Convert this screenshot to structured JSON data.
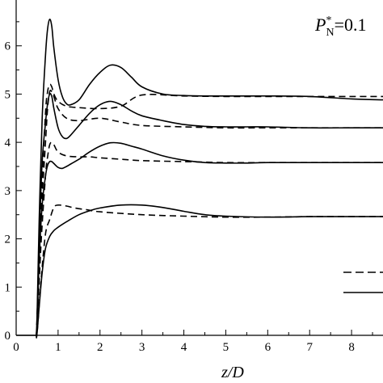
{
  "chart_data": {
    "type": "line",
    "xlabel": "z/D",
    "ylabel": "",
    "xlim": [
      0,
      8.75
    ],
    "ylim": [
      0,
      6.95
    ],
    "x_ticks": [
      "0",
      "1",
      "2",
      "3",
      "4",
      "5",
      "6",
      "7",
      "8"
    ],
    "y_ticks": [
      "0",
      "1",
      "2",
      "3",
      "4",
      "5",
      "6"
    ],
    "annotation": {
      "main": "P",
      "sup": "*",
      "sub": "N",
      "value": "=0.1"
    },
    "legend": {
      "placement": "bottom-right",
      "entries": [
        {
          "style": "dashed"
        },
        {
          "style": "solid"
        }
      ]
    },
    "grid": false,
    "series": [
      {
        "style": "solid",
        "x": [
          0.48,
          0.5,
          0.55,
          0.62,
          0.7,
          0.8,
          0.9,
          1.0,
          1.1,
          1.25,
          1.5,
          1.75,
          2.0,
          2.5,
          3.0,
          3.5,
          4.0,
          4.5,
          5.0,
          6.0,
          7.0,
          8.0,
          8.75
        ],
        "y": [
          0.0,
          0.05,
          0.6,
          1.3,
          1.8,
          2.05,
          2.17,
          2.24,
          2.3,
          2.38,
          2.5,
          2.58,
          2.64,
          2.7,
          2.7,
          2.65,
          2.57,
          2.5,
          2.47,
          2.45,
          2.46,
          2.46,
          2.46
        ]
      },
      {
        "style": "dashed",
        "x": [
          0.48,
          0.5,
          0.6,
          0.7,
          0.8,
          0.9,
          1.0,
          1.2,
          1.4,
          1.7,
          2.0,
          3.0,
          4.0,
          5.0,
          6.0,
          7.0,
          8.0,
          8.75
        ],
        "y": [
          0.0,
          0.05,
          1.2,
          2.1,
          2.4,
          2.65,
          2.7,
          2.68,
          2.64,
          2.6,
          2.56,
          2.5,
          2.47,
          2.45,
          2.45,
          2.46,
          2.46,
          2.46
        ]
      },
      {
        "style": "solid",
        "x": [
          0.48,
          0.5,
          0.55,
          0.62,
          0.7,
          0.75,
          0.8,
          0.85,
          0.9,
          1.0,
          1.1,
          1.2,
          1.3,
          1.5,
          1.75,
          2.0,
          2.25,
          2.5,
          2.75,
          3.0,
          3.5,
          4.0,
          4.5,
          5.0,
          5.5,
          6.0,
          7.0,
          8.0,
          8.75
        ],
        "y": [
          0.0,
          0.2,
          1.6,
          2.7,
          3.3,
          3.52,
          3.6,
          3.6,
          3.56,
          3.48,
          3.46,
          3.5,
          3.55,
          3.65,
          3.8,
          3.92,
          3.99,
          3.98,
          3.92,
          3.86,
          3.72,
          3.63,
          3.58,
          3.57,
          3.57,
          3.58,
          3.58,
          3.58,
          3.58
        ]
      },
      {
        "style": "dashed",
        "x": [
          0.48,
          0.5,
          0.6,
          0.7,
          0.75,
          0.8,
          0.85,
          0.9,
          1.0,
          1.2,
          1.5,
          1.75,
          2.0,
          2.5,
          3.0,
          4.0,
          5.0,
          6.0,
          7.0,
          8.0,
          8.75
        ],
        "y": [
          0.0,
          0.2,
          2.0,
          3.3,
          3.7,
          3.95,
          4.0,
          3.95,
          3.8,
          3.72,
          3.7,
          3.7,
          3.68,
          3.65,
          3.62,
          3.6,
          3.58,
          3.58,
          3.58,
          3.58,
          3.58
        ]
      },
      {
        "style": "solid",
        "x": [
          0.48,
          0.5,
          0.55,
          0.62,
          0.7,
          0.75,
          0.8,
          0.85,
          0.9,
          1.0,
          1.1,
          1.2,
          1.3,
          1.5,
          1.75,
          2.0,
          2.25,
          2.5,
          2.75,
          3.0,
          3.5,
          4.0,
          4.5,
          5.0,
          5.5,
          6.0,
          7.0,
          8.0,
          8.75
        ],
        "y": [
          0.0,
          0.3,
          2.0,
          3.6,
          4.4,
          4.8,
          5.0,
          4.95,
          4.7,
          4.3,
          4.12,
          4.08,
          4.15,
          4.35,
          4.6,
          4.78,
          4.85,
          4.78,
          4.65,
          4.55,
          4.45,
          4.37,
          4.33,
          4.32,
          4.32,
          4.32,
          4.3,
          4.3,
          4.3
        ]
      },
      {
        "style": "dashed",
        "x": [
          0.48,
          0.5,
          0.6,
          0.7,
          0.75,
          0.8,
          0.85,
          0.9,
          1.0,
          1.2,
          1.5,
          2.0,
          2.5,
          3.0,
          4.0,
          5.0,
          6.0,
          7.0,
          8.0,
          8.75
        ],
        "y": [
          0.0,
          0.3,
          2.5,
          4.0,
          4.7,
          5.05,
          5.05,
          4.95,
          4.7,
          4.5,
          4.45,
          4.5,
          4.42,
          4.35,
          4.32,
          4.3,
          4.3,
          4.3,
          4.3,
          4.3
        ]
      },
      {
        "style": "solid",
        "x": [
          0.48,
          0.5,
          0.55,
          0.62,
          0.7,
          0.75,
          0.8,
          0.85,
          0.9,
          1.0,
          1.1,
          1.2,
          1.3,
          1.5,
          1.75,
          2.0,
          2.25,
          2.5,
          2.75,
          3.0,
          3.5,
          4.0,
          4.5,
          5.0,
          5.5,
          6.0,
          7.0,
          8.0,
          8.75
        ],
        "y": [
          0.0,
          0.4,
          2.4,
          4.5,
          5.8,
          6.35,
          6.55,
          6.4,
          5.95,
          5.3,
          4.95,
          4.8,
          4.78,
          4.88,
          5.2,
          5.45,
          5.6,
          5.55,
          5.35,
          5.15,
          5.0,
          4.97,
          4.96,
          4.96,
          4.96,
          4.96,
          4.95,
          4.9,
          4.88
        ]
      },
      {
        "style": "dashed",
        "x": [
          0.48,
          0.5,
          0.6,
          0.7,
          0.75,
          0.8,
          0.85,
          0.9,
          1.0,
          1.2,
          1.5,
          2.0,
          2.5,
          3.0,
          4.0,
          5.0,
          6.0,
          7.0,
          8.0,
          8.75
        ],
        "y": [
          0.0,
          0.4,
          2.8,
          4.6,
          5.05,
          5.2,
          5.15,
          5.0,
          4.85,
          4.75,
          4.72,
          4.7,
          4.75,
          4.98,
          4.96,
          4.95,
          4.95,
          4.95,
          4.95,
          4.95
        ]
      }
    ]
  }
}
